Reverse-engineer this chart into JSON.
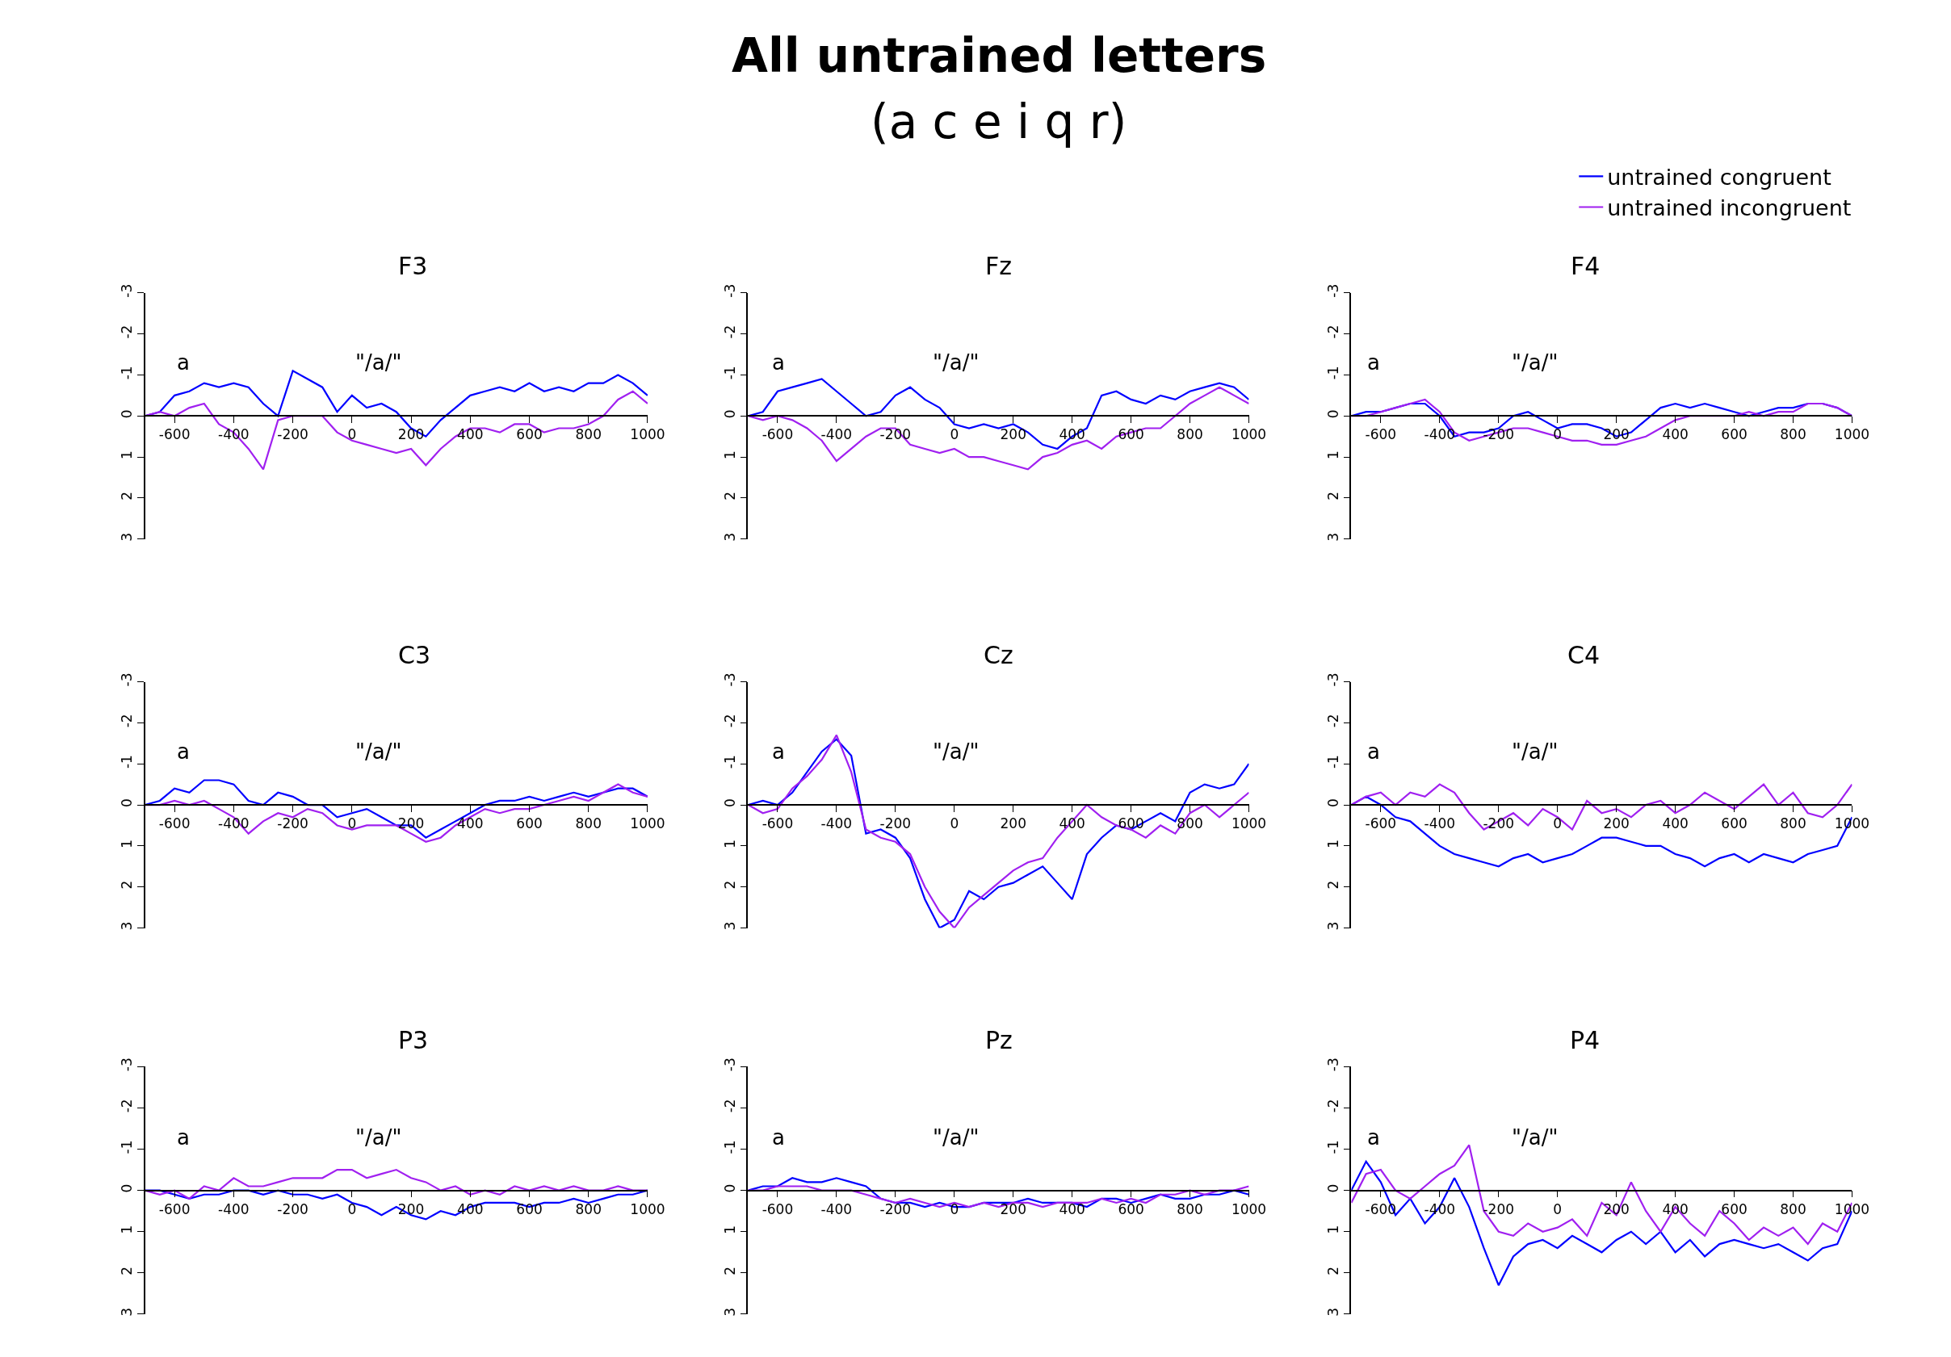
{
  "chart_data": [
    {
      "type": "line",
      "marker": "none",
      "line_style": "solid",
      "grid": false,
      "xlim": [
        -700,
        1000
      ],
      "ylim": [
        3,
        -3
      ],
      "xticks": [
        -600,
        -400,
        -200,
        0,
        200,
        400,
        600,
        800,
        1000
      ],
      "yticks": [
        -3,
        -2,
        -1,
        0,
        1,
        2,
        3
      ],
      "annotations": [
        "F3",
        "a",
        "\"/a/\""
      ],
      "x": [
        -700,
        -650,
        -600,
        -550,
        -500,
        -450,
        -400,
        -350,
        -300,
        -250,
        -200,
        -150,
        -100,
        -50,
        0,
        50,
        100,
        150,
        200,
        250,
        300,
        350,
        400,
        450,
        500,
        550,
        600,
        650,
        700,
        750,
        800,
        850,
        900,
        950,
        1000
      ],
      "series": [
        {
          "color": "#0000ff",
          "values": [
            0,
            -0.1,
            -0.5,
            -0.6,
            -0.8,
            -0.7,
            -0.8,
            -0.7,
            -0.3,
            0,
            -1.1,
            -0.9,
            -0.7,
            -0.1,
            -0.5,
            -0.2,
            -0.3,
            -0.1,
            0.3,
            0.5,
            0.1,
            -0.2,
            -0.5,
            -0.6,
            -0.7,
            -0.6,
            -0.8,
            -0.6,
            -0.7,
            -0.6,
            -0.8,
            -0.8,
            -1.0,
            -0.8,
            -0.5
          ]
        },
        {
          "color": "#a020f0",
          "values": [
            0,
            -0.1,
            0,
            -0.2,
            -0.3,
            0.2,
            0.4,
            0.8,
            1.3,
            0.1,
            0,
            0,
            0,
            0.4,
            0.6,
            0.7,
            0.8,
            0.9,
            0.8,
            1.2,
            0.8,
            0.5,
            0.3,
            0.3,
            0.4,
            0.2,
            0.2,
            0.4,
            0.3,
            0.3,
            0.2,
            0,
            -0.4,
            -0.6,
            -0.3
          ]
        }
      ]
    },
    {
      "type": "line",
      "title": "All untrained letters",
      "subtitle": "(a c e i q r)",
      "marker": "none",
      "line_style": "solid",
      "grid": false,
      "xlim": [
        -700,
        1000
      ],
      "ylim": [
        3,
        -3
      ],
      "xticks": [
        -600,
        -400,
        -200,
        0,
        200,
        400,
        600,
        800,
        1000
      ],
      "yticks": [
        -3,
        -2,
        -1,
        0,
        1,
        2,
        3
      ],
      "annotations": [
        "Fz",
        "a",
        "\"/a/\""
      ],
      "x": [
        -700,
        -650,
        -600,
        -550,
        -500,
        -450,
        -400,
        -350,
        -300,
        -250,
        -200,
        -150,
        -100,
        -50,
        0,
        50,
        100,
        150,
        200,
        250,
        300,
        350,
        400,
        450,
        500,
        550,
        600,
        650,
        700,
        750,
        800,
        850,
        900,
        950,
        1000
      ],
      "series": [
        {
          "color": "#0000ff",
          "values": [
            0,
            -0.1,
            -0.6,
            -0.7,
            -0.8,
            -0.9,
            -0.6,
            -0.3,
            0,
            -0.1,
            -0.5,
            -0.7,
            -0.4,
            -0.2,
            0.2,
            0.3,
            0.2,
            0.3,
            0.2,
            0.4,
            0.7,
            0.8,
            0.5,
            0.3,
            -0.5,
            -0.6,
            -0.4,
            -0.3,
            -0.5,
            -0.4,
            -0.6,
            -0.7,
            -0.8,
            -0.7,
            -0.4
          ]
        },
        {
          "color": "#a020f0",
          "values": [
            0,
            0.1,
            0,
            0.1,
            0.3,
            0.6,
            1.1,
            0.8,
            0.5,
            0.3,
            0.3,
            0.7,
            0.8,
            0.9,
            0.8,
            1.0,
            1.0,
            1.1,
            1.2,
            1.3,
            1.0,
            0.9,
            0.7,
            0.6,
            0.8,
            0.5,
            0.4,
            0.3,
            0.3,
            0,
            -0.3,
            -0.5,
            -0.7,
            -0.5,
            -0.3
          ]
        }
      ]
    },
    {
      "type": "line",
      "legend": "top right",
      "marker": "none",
      "line_style": "solid",
      "grid": false,
      "xlim": [
        -700,
        1000
      ],
      "ylim": [
        3,
        -3
      ],
      "xticks": [
        -600,
        -400,
        -200,
        0,
        200,
        400,
        600,
        800,
        1000
      ],
      "yticks": [
        -3,
        -2,
        -1,
        0,
        1,
        2,
        3
      ],
      "annotations": [
        "F4",
        "a",
        "\"/a/\""
      ],
      "x": [
        -700,
        -650,
        -600,
        -550,
        -500,
        -450,
        -400,
        -350,
        -300,
        -250,
        -200,
        -150,
        -100,
        -50,
        0,
        50,
        100,
        150,
        200,
        250,
        300,
        350,
        400,
        450,
        500,
        550,
        600,
        650,
        700,
        750,
        800,
        850,
        900,
        950,
        1000
      ],
      "series": [
        {
          "name": "untrained congruent",
          "color": "#0000ff",
          "values": [
            0,
            -0.1,
            -0.1,
            -0.2,
            -0.3,
            -0.3,
            0,
            0.5,
            0.4,
            0.4,
            0.3,
            0,
            -0.1,
            0.1,
            0.3,
            0.2,
            0.2,
            0.3,
            0.5,
            0.4,
            0.1,
            -0.2,
            -0.3,
            -0.2,
            -0.3,
            -0.2,
            -0.1,
            0,
            -0.1,
            -0.2,
            -0.2,
            -0.3,
            -0.3,
            -0.2,
            0
          ]
        },
        {
          "name": "untrained incongruent",
          "color": "#a020f0",
          "values": [
            0,
            0,
            -0.1,
            -0.2,
            -0.3,
            -0.4,
            -0.1,
            0.4,
            0.6,
            0.5,
            0.4,
            0.3,
            0.3,
            0.4,
            0.5,
            0.6,
            0.6,
            0.7,
            0.7,
            0.6,
            0.5,
            0.3,
            0.1,
            0,
            0,
            0,
            0,
            -0.1,
            0,
            -0.1,
            -0.1,
            -0.3,
            -0.3,
            -0.2,
            0
          ]
        }
      ]
    },
    {
      "type": "line",
      "marker": "none",
      "line_style": "solid",
      "grid": false,
      "xlim": [
        -700,
        1000
      ],
      "ylim": [
        3,
        -3
      ],
      "xticks": [
        -600,
        -400,
        -200,
        0,
        200,
        400,
        600,
        800,
        1000
      ],
      "yticks": [
        -3,
        -2,
        -1,
        0,
        1,
        2,
        3
      ],
      "annotations": [
        "C3",
        "a",
        "\"/a/\""
      ],
      "x": [
        -700,
        -650,
        -600,
        -550,
        -500,
        -450,
        -400,
        -350,
        -300,
        -250,
        -200,
        -150,
        -100,
        -50,
        0,
        50,
        100,
        150,
        200,
        250,
        300,
        350,
        400,
        450,
        500,
        550,
        600,
        650,
        700,
        750,
        800,
        850,
        900,
        950,
        1000
      ],
      "series": [
        {
          "color": "#0000ff",
          "values": [
            0,
            -0.1,
            -0.4,
            -0.3,
            -0.6,
            -0.6,
            -0.5,
            -0.1,
            0,
            -0.3,
            -0.2,
            0,
            0,
            0.3,
            0.2,
            0.1,
            0.3,
            0.5,
            0.5,
            0.8,
            0.6,
            0.4,
            0.2,
            0,
            -0.1,
            -0.1,
            -0.2,
            -0.1,
            -0.2,
            -0.3,
            -0.2,
            -0.3,
            -0.4,
            -0.4,
            -0.2
          ]
        },
        {
          "color": "#a020f0",
          "values": [
            0,
            0,
            -0.1,
            0,
            -0.1,
            0.1,
            0.3,
            0.7,
            0.4,
            0.2,
            0.3,
            0.1,
            0.2,
            0.5,
            0.6,
            0.5,
            0.5,
            0.5,
            0.7,
            0.9,
            0.8,
            0.5,
            0.3,
            0.1,
            0.2,
            0.1,
            0.1,
            0,
            -0.1,
            -0.2,
            -0.1,
            -0.3,
            -0.5,
            -0.3,
            -0.2
          ]
        }
      ]
    },
    {
      "type": "line",
      "marker": "none",
      "line_style": "solid",
      "grid": false,
      "xlim": [
        -700,
        1000
      ],
      "ylim": [
        3,
        -3
      ],
      "xticks": [
        -600,
        -400,
        -200,
        0,
        200,
        400,
        600,
        800,
        1000
      ],
      "yticks": [
        -3,
        -2,
        -1,
        0,
        1,
        2,
        3
      ],
      "annotations": [
        "Cz",
        "a",
        "\"/a/\""
      ],
      "x": [
        -700,
        -650,
        -600,
        -550,
        -500,
        -450,
        -400,
        -350,
        -300,
        -250,
        -200,
        -150,
        -100,
        -50,
        0,
        50,
        100,
        150,
        200,
        250,
        300,
        350,
        400,
        450,
        500,
        550,
        600,
        650,
        700,
        750,
        800,
        850,
        900,
        950,
        1000
      ],
      "series": [
        {
          "color": "#0000ff",
          "values": [
            0,
            -0.1,
            0,
            -0.3,
            -0.8,
            -1.3,
            -1.6,
            -1.2,
            0.7,
            0.6,
            0.8,
            1.3,
            2.3,
            3.0,
            2.8,
            2.1,
            2.3,
            2.0,
            1.9,
            1.7,
            1.5,
            1.9,
            2.3,
            1.2,
            0.8,
            0.5,
            0.6,
            0.4,
            0.2,
            0.4,
            -0.3,
            -0.5,
            -0.4,
            -0.5,
            -1.0
          ]
        },
        {
          "color": "#a020f0",
          "values": [
            0,
            0.2,
            0.1,
            -0.4,
            -0.7,
            -1.1,
            -1.7,
            -0.8,
            0.6,
            0.8,
            0.9,
            1.2,
            2.0,
            2.6,
            3.0,
            2.5,
            2.2,
            1.9,
            1.6,
            1.4,
            1.3,
            0.8,
            0.4,
            0,
            0.3,
            0.5,
            0.6,
            0.8,
            0.5,
            0.7,
            0.2,
            0,
            0.3,
            0,
            -0.3
          ]
        }
      ]
    },
    {
      "type": "line",
      "marker": "none",
      "line_style": "solid",
      "grid": false,
      "xlim": [
        -700,
        1000
      ],
      "ylim": [
        3,
        -3
      ],
      "xticks": [
        -600,
        -400,
        -200,
        0,
        200,
        400,
        600,
        800,
        1000
      ],
      "yticks": [
        -3,
        -2,
        -1,
        0,
        1,
        2,
        3
      ],
      "annotations": [
        "C4",
        "a",
        "\"/a/\""
      ],
      "x": [
        -700,
        -650,
        -600,
        -550,
        -500,
        -450,
        -400,
        -350,
        -300,
        -250,
        -200,
        -150,
        -100,
        -50,
        0,
        50,
        100,
        150,
        200,
        250,
        300,
        350,
        400,
        450,
        500,
        550,
        600,
        650,
        700,
        750,
        800,
        850,
        900,
        950,
        1000
      ],
      "series": [
        {
          "color": "#0000ff",
          "values": [
            0,
            -0.2,
            0,
            0.3,
            0.4,
            0.7,
            1.0,
            1.2,
            1.3,
            1.4,
            1.5,
            1.3,
            1.2,
            1.4,
            1.3,
            1.2,
            1.0,
            0.8,
            0.8,
            0.9,
            1.0,
            1.0,
            1.2,
            1.3,
            1.5,
            1.3,
            1.2,
            1.4,
            1.2,
            1.3,
            1.4,
            1.2,
            1.1,
            1.0,
            0.3
          ]
        },
        {
          "color": "#a020f0",
          "values": [
            0,
            -0.2,
            -0.3,
            0,
            -0.3,
            -0.2,
            -0.5,
            -0.3,
            0.2,
            0.6,
            0.4,
            0.2,
            0.5,
            0.1,
            0.3,
            0.6,
            -0.1,
            0.2,
            0.1,
            0.3,
            0,
            -0.1,
            0.2,
            0,
            -0.3,
            -0.1,
            0.1,
            -0.2,
            -0.5,
            0,
            -0.3,
            0.2,
            0.3,
            0,
            -0.5
          ]
        }
      ]
    },
    {
      "type": "line",
      "marker": "none",
      "line_style": "solid",
      "grid": false,
      "xlim": [
        -700,
        1000
      ],
      "ylim": [
        3,
        -3
      ],
      "xticks": [
        -600,
        -400,
        -200,
        0,
        200,
        400,
        600,
        800,
        1000
      ],
      "yticks": [
        -3,
        -2,
        -1,
        0,
        1,
        2,
        3
      ],
      "annotations": [
        "P3",
        "a",
        "\"/a/\""
      ],
      "x": [
        -700,
        -650,
        -600,
        -550,
        -500,
        -450,
        -400,
        -350,
        -300,
        -250,
        -200,
        -150,
        -100,
        -50,
        0,
        50,
        100,
        150,
        200,
        250,
        300,
        350,
        400,
        450,
        500,
        550,
        600,
        650,
        700,
        750,
        800,
        850,
        900,
        950,
        1000
      ],
      "series": [
        {
          "color": "#0000ff",
          "values": [
            0,
            0,
            0.1,
            0.2,
            0.1,
            0.1,
            0,
            0,
            0.1,
            0,
            0.1,
            0.1,
            0.2,
            0.1,
            0.3,
            0.4,
            0.6,
            0.4,
            0.6,
            0.7,
            0.5,
            0.6,
            0.4,
            0.3,
            0.3,
            0.3,
            0.4,
            0.3,
            0.3,
            0.2,
            0.3,
            0.2,
            0.1,
            0.1,
            0
          ]
        },
        {
          "color": "#a020f0",
          "values": [
            0,
            0.1,
            0,
            0.2,
            -0.1,
            0,
            -0.3,
            -0.1,
            -0.1,
            -0.2,
            -0.3,
            -0.3,
            -0.3,
            -0.5,
            -0.5,
            -0.3,
            -0.4,
            -0.5,
            -0.3,
            -0.2,
            0,
            -0.1,
            0.1,
            0,
            0.1,
            -0.1,
            0,
            -0.1,
            0,
            -0.1,
            0,
            0,
            -0.1,
            0,
            0
          ]
        }
      ]
    },
    {
      "type": "line",
      "marker": "none",
      "line_style": "solid",
      "grid": false,
      "xlim": [
        -700,
        1000
      ],
      "ylim": [
        3,
        -3
      ],
      "xticks": [
        -600,
        -400,
        -200,
        0,
        200,
        400,
        600,
        800,
        1000
      ],
      "yticks": [
        -3,
        -2,
        -1,
        0,
        1,
        2,
        3
      ],
      "annotations": [
        "Pz",
        "a",
        "\"/a/\""
      ],
      "x": [
        -700,
        -650,
        -600,
        -550,
        -500,
        -450,
        -400,
        -350,
        -300,
        -250,
        -200,
        -150,
        -100,
        -50,
        0,
        50,
        100,
        150,
        200,
        250,
        300,
        350,
        400,
        450,
        500,
        550,
        600,
        650,
        700,
        750,
        800,
        850,
        900,
        950,
        1000
      ],
      "series": [
        {
          "color": "#0000ff",
          "values": [
            0,
            -0.1,
            -0.1,
            -0.3,
            -0.2,
            -0.2,
            -0.3,
            -0.2,
            -0.1,
            0.2,
            0.3,
            0.3,
            0.4,
            0.3,
            0.4,
            0.4,
            0.3,
            0.3,
            0.3,
            0.2,
            0.3,
            0.3,
            0.3,
            0.4,
            0.2,
            0.2,
            0.3,
            0.2,
            0.1,
            0.2,
            0.2,
            0.1,
            0.1,
            0,
            0.1
          ]
        },
        {
          "color": "#a020f0",
          "values": [
            0,
            0,
            -0.1,
            -0.1,
            -0.1,
            0,
            0,
            0,
            0.1,
            0.2,
            0.3,
            0.2,
            0.3,
            0.4,
            0.3,
            0.4,
            0.3,
            0.4,
            0.3,
            0.3,
            0.4,
            0.3,
            0.3,
            0.3,
            0.2,
            0.3,
            0.2,
            0.3,
            0.1,
            0.1,
            0,
            0.1,
            0,
            0,
            -0.1
          ]
        }
      ]
    },
    {
      "type": "line",
      "marker": "none",
      "line_style": "solid",
      "grid": false,
      "xlim": [
        -700,
        1000
      ],
      "ylim": [
        3,
        -3
      ],
      "xticks": [
        -600,
        -400,
        -200,
        0,
        200,
        400,
        600,
        800,
        1000
      ],
      "yticks": [
        -3,
        -2,
        -1,
        0,
        1,
        2,
        3
      ],
      "annotations": [
        "P4",
        "a",
        "\"/a/\""
      ],
      "x": [
        -700,
        -650,
        -600,
        -550,
        -500,
        -450,
        -400,
        -350,
        -300,
        -250,
        -200,
        -150,
        -100,
        -50,
        0,
        50,
        100,
        150,
        200,
        250,
        300,
        350,
        400,
        450,
        500,
        550,
        600,
        650,
        700,
        750,
        800,
        850,
        900,
        950,
        1000
      ],
      "series": [
        {
          "color": "#0000ff",
          "values": [
            0,
            -0.7,
            -0.2,
            0.6,
            0.2,
            0.8,
            0.4,
            -0.3,
            0.4,
            1.4,
            2.3,
            1.6,
            1.3,
            1.2,
            1.4,
            1.1,
            1.3,
            1.5,
            1.2,
            1.0,
            1.3,
            1.0,
            1.5,
            1.2,
            1.6,
            1.3,
            1.2,
            1.3,
            1.4,
            1.3,
            1.5,
            1.7,
            1.4,
            1.3,
            0.5
          ]
        },
        {
          "color": "#a020f0",
          "values": [
            0.3,
            -0.4,
            -0.5,
            0,
            0.2,
            -0.1,
            -0.4,
            -0.6,
            -1.1,
            0.5,
            1.0,
            1.1,
            0.8,
            1.0,
            0.9,
            0.7,
            1.1,
            0.3,
            0.6,
            -0.2,
            0.5,
            1.0,
            0.4,
            0.8,
            1.1,
            0.5,
            0.8,
            1.2,
            0.9,
            1.1,
            0.9,
            1.3,
            0.8,
            1.0,
            0.3
          ]
        }
      ]
    }
  ]
}
